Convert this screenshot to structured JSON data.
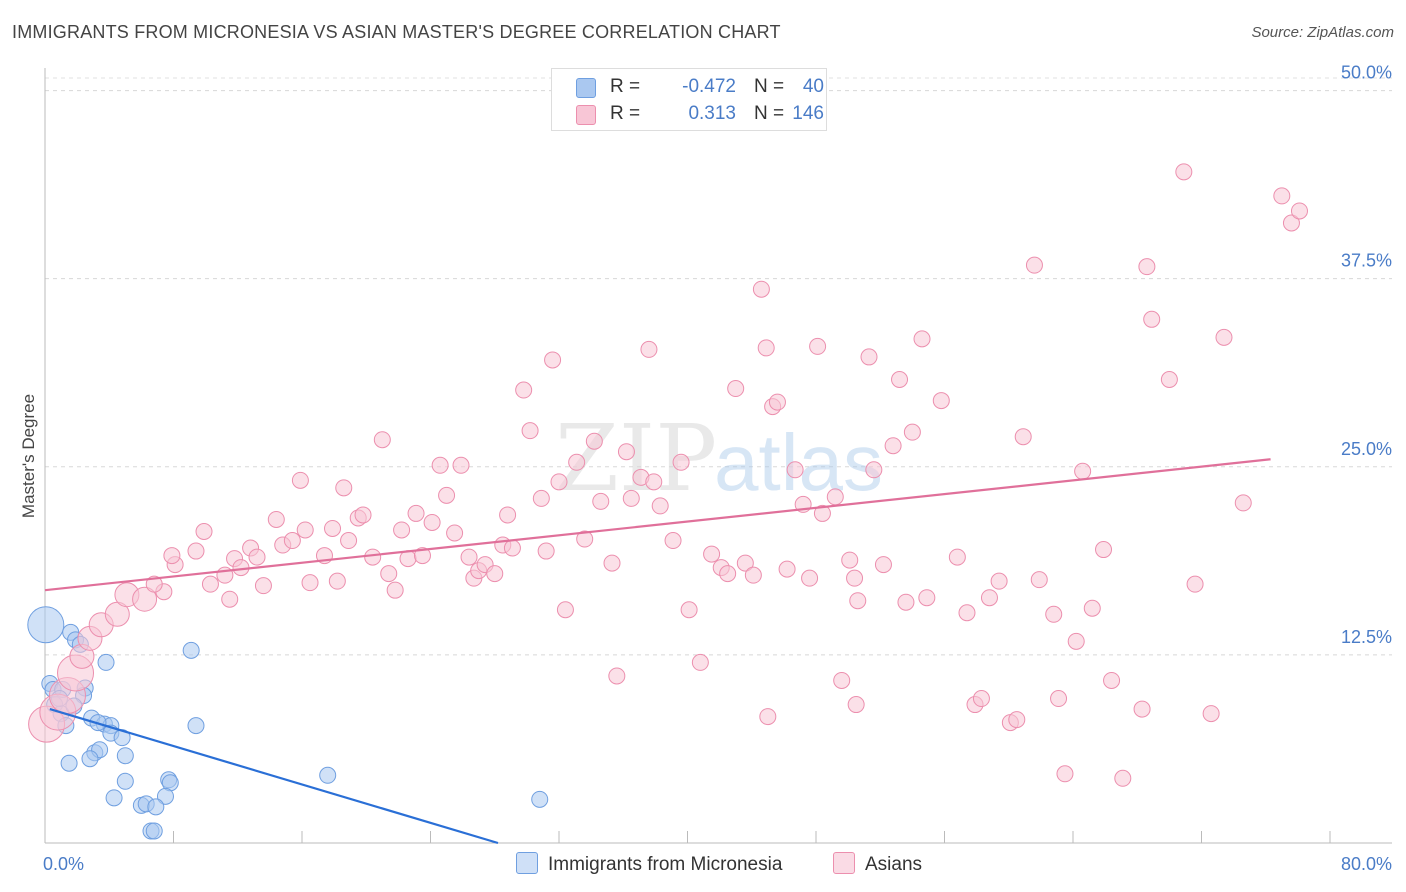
{
  "header": {
    "title": "IMMIGRANTS FROM MICRONESIA VS ASIAN MASTER'S DEGREE CORRELATION CHART",
    "source": "Source: ZipAtlas.com"
  },
  "watermark": {
    "part1": "ZIP",
    "part2": "atlas"
  },
  "legend": {
    "rows": [
      {
        "r_label": "R =",
        "r_value": "-0.472",
        "n_label": "N =",
        "n_value": "40",
        "color": "#aac8f0",
        "border": "#6f9fe0"
      },
      {
        "r_label": "R =",
        "r_value": "0.313",
        "n_label": "N =",
        "n_value": "146",
        "color": "#f8c6d6",
        "border": "#ec8fae"
      }
    ]
  },
  "bottom_legend": {
    "items": [
      {
        "label": "Immigrants from Micronesia",
        "color": "#aac8f0",
        "border": "#6f9fe0"
      },
      {
        "label": "Asians",
        "color": "#f8c6d6",
        "border": "#ec8fae"
      }
    ]
  },
  "chart_data": {
    "type": "scatter",
    "title": "IMMIGRANTS FROM MICRONESIA VS ASIAN MASTER'S DEGREE CORRELATION CHART",
    "xlabel": "",
    "ylabel": "Master's Degree",
    "xlim": [
      0,
      80
    ],
    "ylim": [
      0,
      51.5
    ],
    "x_tick_labels": [
      "0.0%",
      "80.0%"
    ],
    "y_ticks": [
      12.5,
      25.0,
      37.5,
      50.0
    ],
    "y_tick_labels": [
      "12.5%",
      "25.0%",
      "37.5%",
      "50.0%"
    ],
    "grid": true,
    "legend_position": "top-center",
    "series": [
      {
        "name": "Immigrants from Micronesia",
        "color": "#aac8f0",
        "stroke": "#6f9fe0",
        "trend": {
          "x": [
            0.3,
            28.2
          ],
          "y": [
            8.9,
            0.0
          ],
          "color": "#2a6fd6"
        },
        "points": [
          [
            0.05,
            14.5,
            3
          ],
          [
            1.6,
            14.0,
            1
          ],
          [
            1.9,
            13.5,
            1
          ],
          [
            2.2,
            13.2,
            1
          ],
          [
            3.8,
            12.0,
            1
          ],
          [
            9.1,
            12.8,
            1
          ],
          [
            0.3,
            10.6,
            1
          ],
          [
            0.5,
            10.2,
            1
          ],
          [
            1.1,
            10.2,
            1
          ],
          [
            2.5,
            10.3,
            1
          ],
          [
            2.4,
            9.8,
            1
          ],
          [
            0.6,
            9.2,
            1
          ],
          [
            1.0,
            8.6,
            1
          ],
          [
            2.9,
            8.3,
            1
          ],
          [
            1.3,
            7.8,
            1
          ],
          [
            3.7,
            7.9,
            1
          ],
          [
            4.1,
            7.8,
            1
          ],
          [
            9.4,
            7.8,
            1
          ],
          [
            4.1,
            7.3,
            1
          ],
          [
            4.8,
            7.0,
            1
          ],
          [
            3.1,
            6.0,
            1
          ],
          [
            3.4,
            6.2,
            1
          ],
          [
            2.8,
            5.6,
            1
          ],
          [
            1.5,
            5.3,
            1
          ],
          [
            5.0,
            5.8,
            1
          ],
          [
            5.0,
            4.1,
            1
          ],
          [
            7.7,
            4.2,
            1
          ],
          [
            7.8,
            4.0,
            1
          ],
          [
            17.6,
            4.5,
            1
          ],
          [
            4.3,
            3.0,
            1
          ],
          [
            7.5,
            3.1,
            1
          ],
          [
            6.0,
            2.5,
            1
          ],
          [
            6.3,
            2.6,
            1
          ],
          [
            30.8,
            2.9,
            1
          ],
          [
            6.6,
            0.8,
            1
          ],
          [
            6.8,
            0.8,
            1
          ],
          [
            0.9,
            9.6,
            1
          ],
          [
            1.8,
            9.1,
            1
          ],
          [
            3.3,
            8.0,
            1
          ],
          [
            6.9,
            2.4,
            1
          ]
        ]
      },
      {
        "name": "Asians",
        "color": "#f8c6d6",
        "stroke": "#ec8fae",
        "trend": {
          "x": [
            0,
            76.3
          ],
          "y": [
            16.8,
            25.5
          ],
          "color": "#e0709a"
        },
        "points": [
          [
            0.1,
            7.9,
            3
          ],
          [
            0.8,
            8.7,
            3
          ],
          [
            1.4,
            9.8,
            3
          ],
          [
            1.9,
            11.3,
            3
          ],
          [
            2.3,
            12.4,
            2
          ],
          [
            2.8,
            13.6,
            2
          ],
          [
            3.5,
            14.5,
            2
          ],
          [
            4.5,
            15.2,
            2
          ],
          [
            5.1,
            16.5,
            2
          ],
          [
            6.2,
            16.2,
            2
          ],
          [
            7.4,
            16.7,
            1
          ],
          [
            6.8,
            17.2,
            1
          ],
          [
            8.1,
            18.5,
            1
          ],
          [
            7.9,
            19.1,
            1
          ],
          [
            9.4,
            19.4,
            1
          ],
          [
            9.9,
            20.7,
            1
          ],
          [
            10.3,
            17.2,
            1
          ],
          [
            11.2,
            17.8,
            1
          ],
          [
            11.5,
            16.2,
            1
          ],
          [
            11.8,
            18.9,
            1
          ],
          [
            12.2,
            18.3,
            1
          ],
          [
            12.8,
            19.6,
            1
          ],
          [
            13.2,
            19.0,
            1
          ],
          [
            13.6,
            17.1,
            1
          ],
          [
            14.4,
            21.5,
            1
          ],
          [
            14.8,
            19.8,
            1
          ],
          [
            15.4,
            20.1,
            1
          ],
          [
            16.2,
            20.8,
            1
          ],
          [
            16.5,
            17.3,
            1
          ],
          [
            15.9,
            24.1,
            1
          ],
          [
            17.4,
            19.1,
            1
          ],
          [
            17.9,
            20.9,
            1
          ],
          [
            18.2,
            17.4,
            1
          ],
          [
            18.6,
            23.6,
            1
          ],
          [
            18.9,
            20.1,
            1
          ],
          [
            19.5,
            21.6,
            1
          ],
          [
            19.8,
            21.8,
            1
          ],
          [
            20.4,
            19.0,
            1
          ],
          [
            21.0,
            26.8,
            1
          ],
          [
            21.4,
            17.9,
            1
          ],
          [
            21.8,
            16.8,
            1
          ],
          [
            22.2,
            20.8,
            1
          ],
          [
            22.6,
            18.9,
            1
          ],
          [
            23.1,
            21.9,
            1
          ],
          [
            23.5,
            19.1,
            1
          ],
          [
            24.1,
            21.3,
            1
          ],
          [
            24.6,
            25.1,
            1
          ],
          [
            25.0,
            23.1,
            1
          ],
          [
            25.5,
            20.6,
            1
          ],
          [
            25.9,
            25.1,
            1
          ],
          [
            26.4,
            19.0,
            1
          ],
          [
            26.7,
            17.6,
            1
          ],
          [
            27.0,
            18.1,
            1
          ],
          [
            27.4,
            18.5,
            1
          ],
          [
            28.0,
            17.9,
            1
          ],
          [
            28.5,
            19.8,
            1
          ],
          [
            28.8,
            21.8,
            1
          ],
          [
            29.1,
            19.6,
            1
          ],
          [
            29.8,
            30.1,
            1
          ],
          [
            30.2,
            27.4,
            1
          ],
          [
            30.9,
            22.9,
            1
          ],
          [
            31.2,
            19.4,
            1
          ],
          [
            31.6,
            32.1,
            1
          ],
          [
            32.0,
            24.0,
            1
          ],
          [
            32.4,
            15.5,
            1
          ],
          [
            33.1,
            25.3,
            1
          ],
          [
            33.6,
            20.2,
            1
          ],
          [
            34.2,
            26.7,
            1
          ],
          [
            34.6,
            22.7,
            1
          ],
          [
            35.3,
            18.6,
            1
          ],
          [
            35.6,
            11.1,
            1
          ],
          [
            36.2,
            26.0,
            1
          ],
          [
            36.5,
            22.9,
            1
          ],
          [
            37.1,
            24.3,
            1
          ],
          [
            37.6,
            32.8,
            1
          ],
          [
            37.9,
            24.0,
            1
          ],
          [
            38.3,
            22.4,
            1
          ],
          [
            39.1,
            20.1,
            1
          ],
          [
            39.6,
            25.3,
            1
          ],
          [
            40.1,
            15.5,
            1
          ],
          [
            40.8,
            12.0,
            1
          ],
          [
            41.5,
            19.2,
            1
          ],
          [
            42.1,
            18.3,
            1
          ],
          [
            42.5,
            17.9,
            1
          ],
          [
            43.0,
            30.2,
            1
          ],
          [
            43.6,
            18.6,
            1
          ],
          [
            44.1,
            17.8,
            1
          ],
          [
            44.6,
            36.8,
            1
          ],
          [
            44.9,
            32.9,
            1
          ],
          [
            45.3,
            29.0,
            1
          ],
          [
            45.6,
            29.3,
            1
          ],
          [
            46.2,
            18.2,
            1
          ],
          [
            46.7,
            24.8,
            1
          ],
          [
            47.2,
            22.5,
            1
          ],
          [
            47.6,
            17.6,
            1
          ],
          [
            48.1,
            33.0,
            1
          ],
          [
            48.4,
            21.9,
            1
          ],
          [
            49.2,
            23.0,
            1
          ],
          [
            49.6,
            10.8,
            1
          ],
          [
            50.1,
            18.8,
            1
          ],
          [
            50.4,
            17.6,
            1
          ],
          [
            50.6,
            16.1,
            1
          ],
          [
            51.3,
            32.3,
            1
          ],
          [
            51.6,
            24.8,
            1
          ],
          [
            52.2,
            18.5,
            1
          ],
          [
            52.8,
            26.4,
            1
          ],
          [
            53.2,
            30.8,
            1
          ],
          [
            53.6,
            16.0,
            1
          ],
          [
            54.0,
            27.3,
            1
          ],
          [
            54.6,
            33.5,
            1
          ],
          [
            54.9,
            16.3,
            1
          ],
          [
            55.8,
            29.4,
            1
          ],
          [
            56.8,
            19.0,
            1
          ],
          [
            57.4,
            15.3,
            1
          ],
          [
            57.9,
            9.2,
            1
          ],
          [
            58.3,
            9.6,
            1
          ],
          [
            58.8,
            16.3,
            1
          ],
          [
            59.4,
            17.4,
            1
          ],
          [
            60.1,
            8.0,
            1
          ],
          [
            60.9,
            27.0,
            1
          ],
          [
            61.6,
            38.4,
            1
          ],
          [
            61.9,
            17.5,
            1
          ],
          [
            63.1,
            9.6,
            1
          ],
          [
            63.5,
            4.6,
            1
          ],
          [
            64.2,
            13.4,
            1
          ],
          [
            64.6,
            24.7,
            1
          ],
          [
            65.2,
            15.6,
            1
          ],
          [
            65.9,
            19.5,
            1
          ],
          [
            66.4,
            10.8,
            1
          ],
          [
            67.1,
            4.3,
            1
          ],
          [
            68.3,
            8.9,
            1
          ],
          [
            68.6,
            38.3,
            1
          ],
          [
            68.9,
            34.8,
            1
          ],
          [
            70.0,
            30.8,
            1
          ],
          [
            70.9,
            44.6,
            1
          ],
          [
            71.6,
            17.2,
            1
          ],
          [
            72.6,
            8.6,
            1
          ],
          [
            73.4,
            33.6,
            1
          ],
          [
            74.6,
            22.6,
            1
          ],
          [
            77.0,
            43.0,
            1
          ],
          [
            77.6,
            41.2,
            1
          ],
          [
            78.1,
            42.0,
            1
          ],
          [
            50.5,
            9.2,
            1
          ],
          [
            45.0,
            8.4,
            1
          ],
          [
            60.5,
            8.2,
            1
          ],
          [
            62.8,
            15.2,
            1
          ]
        ]
      }
    ]
  }
}
